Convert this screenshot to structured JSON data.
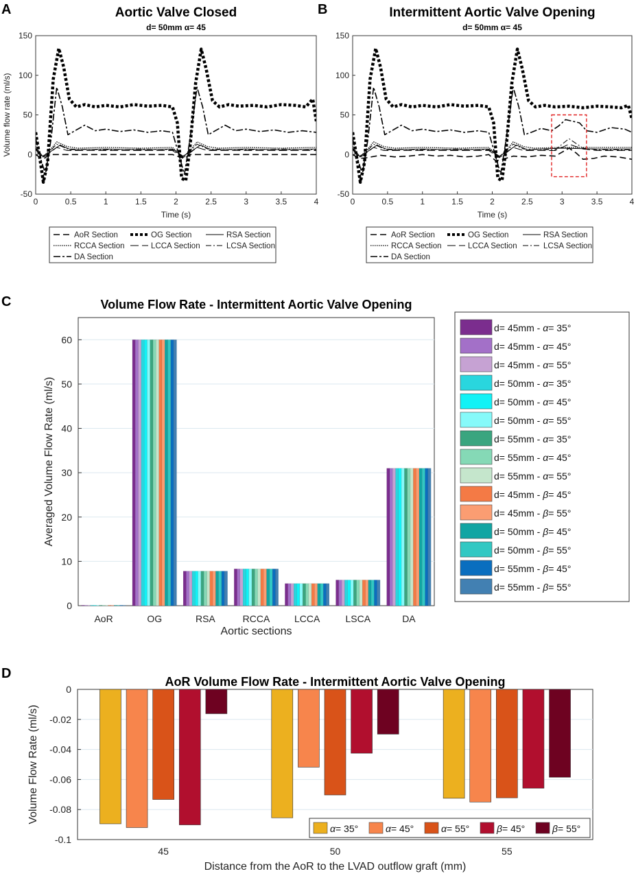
{
  "chart_data": [
    {
      "panel": "A",
      "type": "line",
      "title": "Aortic Valve Closed",
      "subtitle": "d= 50mm α= 45",
      "xlabel": "Time (s)",
      "ylabel": "Volume flow rate (ml/s)",
      "xlim": [
        0,
        4
      ],
      "ylim": [
        -50,
        150
      ],
      "xticks": [
        "0",
        "0.5",
        "1",
        "1.5",
        "2",
        "2.5",
        "3",
        "3.5",
        "4"
      ],
      "yticks": [
        "-50",
        "0",
        "50",
        "100",
        "150"
      ],
      "legend": [
        "AoR Section",
        "OG Section",
        "RSA Section",
        "RCCA Section",
        "LCCA Section",
        "LCSA Section",
        "DA Section"
      ],
      "series": [
        {
          "name": "AoR Section",
          "x": [
            0,
            0.05,
            0.12,
            0.2,
            0.35,
            1.95,
            2.05,
            2.12,
            2.2,
            2.35,
            4.0
          ],
          "y": [
            0,
            -3,
            -5,
            0,
            0,
            0,
            -3,
            -5,
            0,
            0,
            0
          ]
        },
        {
          "name": "OG Section",
          "x": [
            0,
            0.06,
            0.11,
            0.17,
            0.25,
            0.33,
            0.4,
            0.48,
            0.58,
            0.7,
            0.85,
            1.0,
            1.2,
            1.4,
            1.6,
            1.8,
            1.95,
            2.02,
            2.08,
            2.14,
            2.2,
            2.28,
            2.36,
            2.43,
            2.52,
            2.62,
            2.75,
            2.9,
            3.1,
            3.3,
            3.5,
            3.7,
            3.85,
            3.95,
            4.0
          ],
          "y": [
            28,
            -5,
            -35,
            -10,
            95,
            134,
            110,
            70,
            60,
            63,
            60,
            62,
            60,
            63,
            61,
            62,
            60,
            40,
            -30,
            -33,
            10,
            90,
            133,
            108,
            68,
            60,
            63,
            61,
            62,
            60,
            63,
            62,
            60,
            70,
            42
          ]
        },
        {
          "name": "RSA Section",
          "x": [
            0,
            0.1,
            0.2,
            0.35,
            0.5,
            1.0,
            1.5,
            1.95,
            2.1,
            2.2,
            2.35,
            2.5,
            3.0,
            3.5,
            4.0
          ],
          "y": [
            8,
            -2,
            3,
            12,
            6,
            7,
            6,
            7,
            -2,
            3,
            12,
            6,
            7,
            6,
            7
          ]
        },
        {
          "name": "RCCA Section",
          "x": [
            0,
            0.1,
            0.2,
            0.3,
            0.45,
            0.6,
            1.0,
            1.5,
            1.95,
            2.1,
            2.2,
            2.3,
            2.45,
            2.6,
            3.0,
            3.5,
            4.0
          ],
          "y": [
            10,
            -3,
            5,
            16,
            10,
            8,
            9,
            8,
            9,
            -3,
            5,
            16,
            10,
            8,
            9,
            8,
            9
          ]
        },
        {
          "name": "LCCA Section",
          "x": [
            0,
            0.1,
            0.2,
            0.3,
            0.45,
            1.0,
            1.5,
            1.95,
            2.1,
            2.2,
            2.3,
            2.45,
            3.0,
            3.5,
            4.0
          ],
          "y": [
            6,
            -4,
            2,
            9,
            5,
            5,
            5,
            5,
            -4,
            2,
            9,
            5,
            5,
            5,
            5
          ]
        },
        {
          "name": "LCSA Section",
          "x": [
            0,
            0.1,
            0.2,
            0.3,
            0.45,
            1.0,
            1.5,
            1.95,
            2.1,
            2.2,
            2.3,
            2.45,
            3.0,
            3.5,
            4.0
          ],
          "y": [
            7,
            -3,
            4,
            13,
            7,
            6,
            7,
            6,
            -3,
            4,
            13,
            7,
            6,
            7,
            6
          ]
        },
        {
          "name": "DA Section",
          "x": [
            0,
            0.08,
            0.14,
            0.22,
            0.3,
            0.38,
            0.46,
            0.56,
            0.7,
            0.85,
            1.0,
            1.2,
            1.4,
            1.6,
            1.8,
            1.95,
            2.04,
            2.12,
            2.2,
            2.3,
            2.38,
            2.46,
            2.56,
            2.7,
            2.85,
            3.0,
            3.2,
            3.4,
            3.6,
            3.8,
            4.0
          ],
          "y": [
            20,
            -8,
            -25,
            20,
            85,
            60,
            25,
            30,
            37,
            30,
            32,
            29,
            31,
            28,
            30,
            28,
            0,
            -25,
            20,
            85,
            60,
            25,
            30,
            37,
            30,
            32,
            29,
            31,
            28,
            30,
            28
          ]
        }
      ]
    },
    {
      "panel": "B",
      "type": "line",
      "title": "Intermittent Aortic Valve Opening",
      "subtitle": "d= 50mm α= 45",
      "xlabel": "Time (s)",
      "ylabel": "",
      "xlim": [
        0,
        4
      ],
      "ylim": [
        -50,
        150
      ],
      "xticks": [
        "0",
        "0.5",
        "1",
        "1.5",
        "2",
        "2.5",
        "3",
        "3.5",
        "4"
      ],
      "yticks": [
        "-50",
        "0",
        "50",
        "100",
        "150"
      ],
      "highlight_box_x": [
        2.85,
        3.35
      ],
      "highlight_box_y": [
        -28,
        50
      ],
      "legend": [
        "AoR Section",
        "OG Section",
        "RSA Section",
        "RCCA Section",
        "LCCA Section",
        "LCSA Section",
        "DA Section"
      ],
      "series": [
        {
          "name": "AoR Section",
          "x": [
            0,
            0.1,
            0.2,
            0.4,
            0.6,
            0.8,
            1.0,
            1.2,
            1.4,
            1.6,
            1.8,
            1.95,
            2.05,
            2.15,
            2.3,
            2.5,
            2.7,
            2.9,
            3.0,
            3.1,
            3.2,
            3.3,
            3.45,
            3.6,
            3.8,
            4.0
          ],
          "y": [
            0,
            -5,
            -4,
            -1,
            -3,
            -2,
            0,
            -2,
            -1,
            -3,
            -2,
            0,
            -8,
            -6,
            -2,
            -3,
            -1,
            -2,
            3,
            8,
            2,
            -6,
            -5,
            -2,
            -3,
            -6
          ]
        },
        {
          "name": "OG Section",
          "x": [
            0,
            0.06,
            0.11,
            0.17,
            0.25,
            0.33,
            0.4,
            0.48,
            0.58,
            0.7,
            0.85,
            1.0,
            1.2,
            1.4,
            1.6,
            1.8,
            1.95,
            2.02,
            2.08,
            2.14,
            2.2,
            2.28,
            2.36,
            2.43,
            2.52,
            2.62,
            2.75,
            2.9,
            3.1,
            3.3,
            3.5,
            3.7,
            3.85,
            3.95,
            4.0
          ],
          "y": [
            28,
            -5,
            -35,
            -10,
            95,
            134,
            110,
            70,
            60,
            63,
            60,
            62,
            60,
            63,
            61,
            62,
            60,
            40,
            -30,
            -33,
            10,
            90,
            133,
            108,
            68,
            60,
            62,
            60,
            61,
            59,
            61,
            60,
            59,
            62,
            45
          ]
        },
        {
          "name": "RSA Section",
          "x": [
            0,
            0.1,
            0.2,
            0.35,
            0.5,
            1.0,
            1.5,
            1.95,
            2.1,
            2.2,
            2.35,
            2.5,
            3.0,
            3.5,
            4.0
          ],
          "y": [
            8,
            -2,
            3,
            12,
            6,
            7,
            6,
            7,
            -2,
            3,
            12,
            6,
            8,
            7,
            7
          ]
        },
        {
          "name": "RCCA Section",
          "x": [
            0,
            0.1,
            0.2,
            0.3,
            0.45,
            0.6,
            1.0,
            1.5,
            1.95,
            2.1,
            2.2,
            2.3,
            2.45,
            2.6,
            3.0,
            3.5,
            4.0
          ],
          "y": [
            10,
            -3,
            5,
            16,
            10,
            8,
            9,
            8,
            9,
            -3,
            5,
            16,
            10,
            8,
            9,
            9,
            9
          ]
        },
        {
          "name": "LCCA Section",
          "x": [
            0,
            0.1,
            0.2,
            0.3,
            0.45,
            1.0,
            1.5,
            1.95,
            2.1,
            2.2,
            2.3,
            2.45,
            2.9,
            3.1,
            3.3,
            3.5,
            4.0
          ],
          "y": [
            6,
            -4,
            2,
            9,
            5,
            5,
            5,
            5,
            -4,
            2,
            9,
            5,
            5,
            13,
            7,
            5,
            5
          ]
        },
        {
          "name": "LCSA Section",
          "x": [
            0,
            0.1,
            0.2,
            0.3,
            0.45,
            1.0,
            1.5,
            1.95,
            2.1,
            2.2,
            2.3,
            2.45,
            2.9,
            3.1,
            3.3,
            3.5,
            4.0
          ],
          "y": [
            7,
            -3,
            4,
            13,
            7,
            6,
            7,
            6,
            -3,
            4,
            13,
            7,
            6,
            20,
            8,
            6,
            6
          ]
        },
        {
          "name": "DA Section",
          "x": [
            0,
            0.08,
            0.14,
            0.22,
            0.3,
            0.38,
            0.46,
            0.56,
            0.7,
            0.85,
            1.0,
            1.2,
            1.4,
            1.6,
            1.8,
            1.95,
            2.04,
            2.12,
            2.2,
            2.3,
            2.38,
            2.46,
            2.56,
            2.7,
            2.85,
            2.95,
            3.05,
            3.15,
            3.25,
            3.35,
            3.5,
            3.7,
            3.9,
            4.0
          ],
          "y": [
            20,
            -8,
            -25,
            20,
            85,
            60,
            25,
            30,
            37,
            30,
            32,
            29,
            31,
            28,
            30,
            28,
            0,
            -25,
            20,
            85,
            60,
            25,
            28,
            33,
            30,
            36,
            44,
            42,
            40,
            30,
            28,
            34,
            32,
            28
          ]
        }
      ]
    },
    {
      "panel": "C",
      "type": "bar",
      "title": "Volume Flow Rate - Intermittent Aortic Valve Opening",
      "xlabel": "Aortic sections",
      "ylabel": "Averaged Volume Flow Rate (ml/s)",
      "ylim": [
        0,
        65
      ],
      "yticks": [
        "0",
        "10",
        "20",
        "30",
        "40",
        "50",
        "60"
      ],
      "categories": [
        "AoR",
        "OG",
        "RSA",
        "RCCA",
        "LCCA",
        "LSCA",
        "DA"
      ],
      "base_values": [
        0.1,
        60,
        7.8,
        8.3,
        5.0,
        5.8,
        31.0
      ],
      "series": [
        {
          "prefix": "d= 45mm - ",
          "symbol": "α",
          "suffix": "= 35°",
          "color": "#7b2d8e"
        },
        {
          "prefix": "d= 45mm - ",
          "symbol": "α",
          "suffix": "= 45°",
          "color": "#a370c8"
        },
        {
          "prefix": "d= 45mm - ",
          "symbol": "α",
          "suffix": "= 55°",
          "color": "#c6a2d3"
        },
        {
          "prefix": "d= 50mm - ",
          "symbol": "α",
          "suffix": "= 35°",
          "color": "#29d6de"
        },
        {
          "prefix": "d= 50mm - ",
          "symbol": "α",
          "suffix": "= 45°",
          "color": "#11f2f6"
        },
        {
          "prefix": "d= 50mm - ",
          "symbol": "α",
          "suffix": "= 55°",
          "color": "#86fafa"
        },
        {
          "prefix": "d= 55mm - ",
          "symbol": "α",
          "suffix": "= 35°",
          "color": "#3aa57f"
        },
        {
          "prefix": "d= 55mm - ",
          "symbol": "α",
          "suffix": "= 45°",
          "color": "#85d9b6"
        },
        {
          "prefix": "d= 55mm - ",
          "symbol": "α",
          "suffix": "= 55°",
          "color": "#c5e6cc"
        },
        {
          "prefix": "d= 45mm - ",
          "symbol": "β",
          "suffix": "= 45°",
          "color": "#f47a45"
        },
        {
          "prefix": "d= 45mm - ",
          "symbol": "β",
          "suffix": "= 55°",
          "color": "#fb9d72"
        },
        {
          "prefix": "d= 50mm - ",
          "symbol": "β",
          "suffix": "= 45°",
          "color": "#11a5a3"
        },
        {
          "prefix": "d= 50mm - ",
          "symbol": "β",
          "suffix": "= 55°",
          "color": "#32c8c3"
        },
        {
          "prefix": "d= 55mm - ",
          "symbol": "β",
          "suffix": "= 45°",
          "color": "#0a6ebf"
        },
        {
          "prefix": "d= 55mm - ",
          "symbol": "β",
          "suffix": "= 55°",
          "color": "#4280b2"
        }
      ]
    },
    {
      "panel": "D",
      "type": "bar",
      "title": "AoR Volume Flow Rate - Intermittent Aortic Valve Opening",
      "xlabel": "Distance from the AoR to the LVAD outflow graft (mm)",
      "ylabel": "Volume Flow Rate (ml/s)",
      "ylim": [
        -0.1,
        0
      ],
      "yticks": [
        "-0.1",
        "-0.08",
        "-0.06",
        "-0.04",
        "-0.02",
        "0"
      ],
      "categories": [
        "45",
        "50",
        "55"
      ],
      "series": [
        {
          "symbol": "α",
          "suffix": "= 35°",
          "color": "#ecb01f",
          "values": [
            -0.0895,
            -0.0855,
            -0.0725
          ]
        },
        {
          "symbol": "α",
          "suffix": "= 45°",
          "color": "#f7854c",
          "values": [
            -0.092,
            -0.0518,
            -0.075
          ]
        },
        {
          "symbol": "α",
          "suffix": "= 55°",
          "color": "#d95319",
          "values": [
            -0.0733,
            -0.0703,
            -0.0722
          ]
        },
        {
          "symbol": "β",
          "suffix": "= 45°",
          "color": "#b10f2e",
          "values": [
            -0.0902,
            -0.0425,
            -0.0658
          ]
        },
        {
          "symbol": "β",
          "suffix": "= 55°",
          "color": "#6e0221",
          "values": [
            -0.0162,
            -0.0298,
            -0.0585
          ]
        }
      ]
    }
  ]
}
